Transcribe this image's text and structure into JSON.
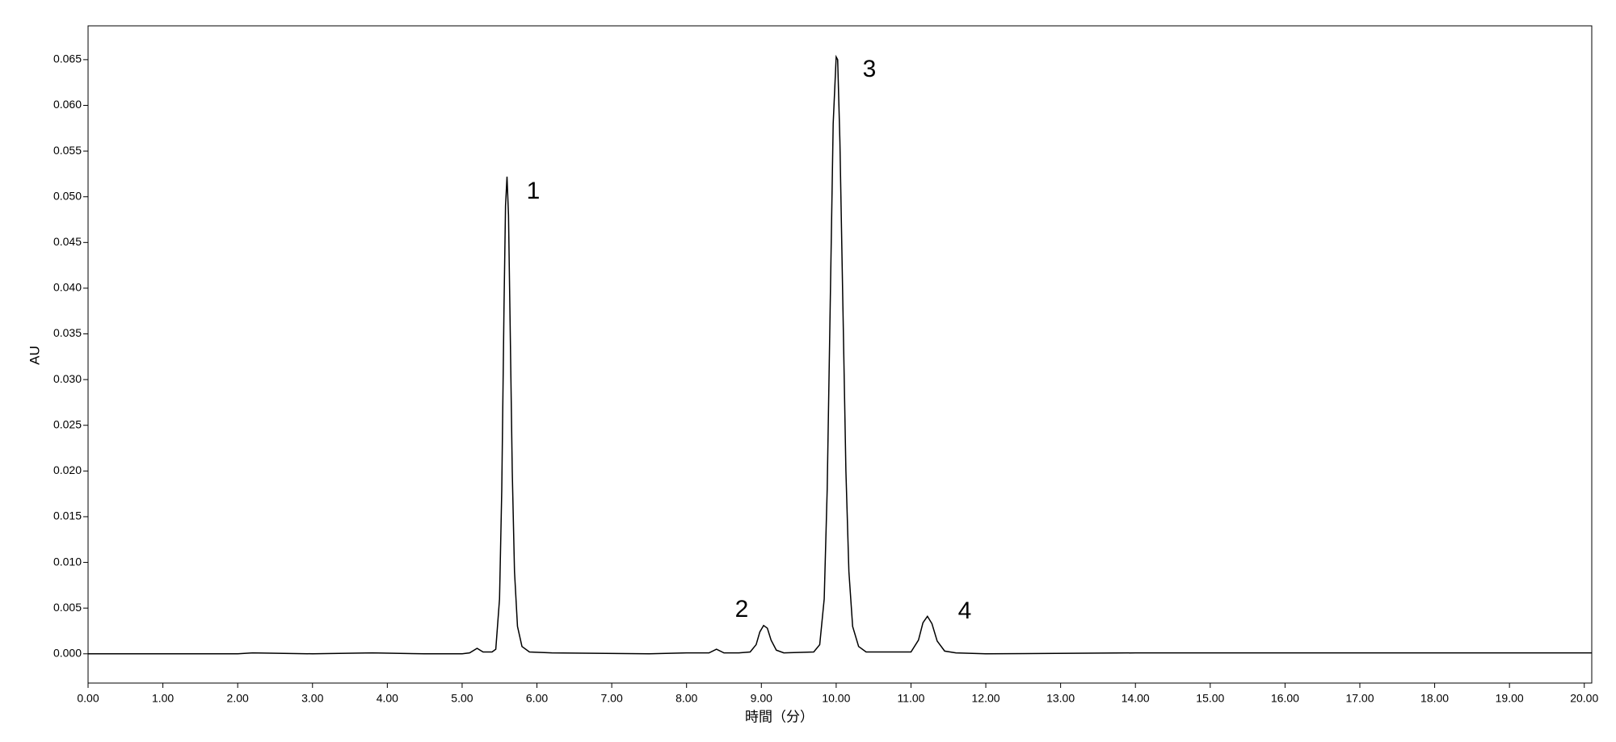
{
  "chart_data": {
    "type": "line",
    "x_label": "時間（分）",
    "y_label": "AU",
    "annotations": [
      "1",
      "2",
      "3",
      "4"
    ],
    "color": "#000000",
    "xlim": [
      0,
      20.1
    ],
    "ylim": [
      -0.0032,
      0.0687
    ],
    "xticks": [
      {
        "value": 0,
        "label": "0.00"
      },
      {
        "value": 1,
        "label": "1.00"
      },
      {
        "value": 2,
        "label": "2.00"
      },
      {
        "value": 3,
        "label": "3.00"
      },
      {
        "value": 4,
        "label": "4.00"
      },
      {
        "value": 5,
        "label": "5.00"
      },
      {
        "value": 6,
        "label": "6.00"
      },
      {
        "value": 7,
        "label": "7.00"
      },
      {
        "value": 8,
        "label": "8.00"
      },
      {
        "value": 9,
        "label": "9.00"
      },
      {
        "value": 10,
        "label": "10.00"
      },
      {
        "value": 11,
        "label": "11.00"
      },
      {
        "value": 12,
        "label": "12.00"
      },
      {
        "value": 13,
        "label": "13.00"
      },
      {
        "value": 14,
        "label": "14.00"
      },
      {
        "value": 15,
        "label": "15.00"
      },
      {
        "value": 16,
        "label": "16.00"
      },
      {
        "value": 17,
        "label": "17.00"
      },
      {
        "value": 18,
        "label": "18.00"
      },
      {
        "value": 19,
        "label": "19.00"
      },
      {
        "value": 20,
        "label": "20.00"
      }
    ],
    "yticks": [
      {
        "value": 0,
        "label": "0.000"
      },
      {
        "value": 0.005,
        "label": "0.005"
      },
      {
        "value": 0.01,
        "label": "0.010"
      },
      {
        "value": 0.015,
        "label": "0.015"
      },
      {
        "value": 0.02,
        "label": "0.020"
      },
      {
        "value": 0.025,
        "label": "0.025"
      },
      {
        "value": 0.03,
        "label": "0.030"
      },
      {
        "value": 0.035,
        "label": "0.035"
      },
      {
        "value": 0.04,
        "label": "0.040"
      },
      {
        "value": 0.045,
        "label": "0.045"
      },
      {
        "value": 0.05,
        "label": "0.050"
      },
      {
        "value": 0.055,
        "label": "0.055"
      },
      {
        "value": 0.06,
        "label": "0.060"
      },
      {
        "value": 0.065,
        "label": "0.065"
      }
    ],
    "x": [
      0,
      2.0,
      2.2,
      3.0,
      3.8,
      4.5,
      5.0,
      5.1,
      5.2,
      5.28,
      5.4,
      5.45,
      5.5,
      5.53,
      5.56,
      5.58,
      5.6,
      5.62,
      5.64,
      5.67,
      5.7,
      5.74,
      5.8,
      5.9,
      6.2,
      7.5,
      8.0,
      8.3,
      8.4,
      8.5,
      8.7,
      8.85,
      8.93,
      8.98,
      9.03,
      9.08,
      9.13,
      9.2,
      9.3,
      9.7,
      9.78,
      9.84,
      9.88,
      9.92,
      9.96,
      10.0,
      10.02,
      10.05,
      10.09,
      10.13,
      10.17,
      10.22,
      10.3,
      10.4,
      11.0,
      11.1,
      11.16,
      11.22,
      11.28,
      11.35,
      11.45,
      11.6,
      12.0,
      14.0,
      17.0,
      20.1
    ],
    "values": [
      0,
      0,
      0.0001,
      0,
      0.0001,
      0,
      0,
      0.0001,
      0.0006,
      0.0002,
      0.0002,
      0.0005,
      0.006,
      0.018,
      0.038,
      0.049,
      0.0522,
      0.048,
      0.037,
      0.02,
      0.009,
      0.003,
      0.0008,
      0.0002,
      0.0001,
      0,
      0.0001,
      0.0001,
      0.0005,
      0.0001,
      0.0001,
      0.0002,
      0.001,
      0.0024,
      0.0031,
      0.0028,
      0.0015,
      0.0004,
      0.0001,
      0.0002,
      0.001,
      0.006,
      0.018,
      0.038,
      0.058,
      0.0653,
      0.065,
      0.056,
      0.038,
      0.02,
      0.009,
      0.003,
      0.0008,
      0.0002,
      0.0002,
      0.0015,
      0.0034,
      0.0041,
      0.0033,
      0.0014,
      0.0003,
      0.0001,
      0,
      0.0001,
      0.0001,
      0.0001
    ]
  }
}
